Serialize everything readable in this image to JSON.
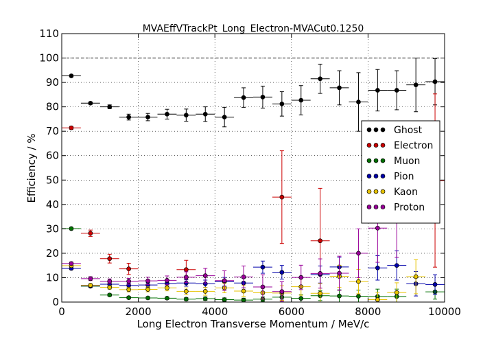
{
  "chart_data": {
    "type": "scatter",
    "title": "MVAEffVTrackPt_Long_Electron-MVACut0.1250",
    "xlabel": "Long Electron Transverse Momentum / MeV/c",
    "ylabel": "Efficiency / %",
    "xlim": [
      0,
      10000
    ],
    "ylim": [
      0,
      110
    ],
    "xticks": [
      0,
      2000,
      4000,
      6000,
      8000,
      10000
    ],
    "yticks": [
      0,
      10,
      20,
      30,
      40,
      50,
      60,
      70,
      80,
      90,
      100,
      110
    ],
    "grid": true,
    "reference_line": 100,
    "legend_position": "right",
    "bin_half_width": 250,
    "series": [
      {
        "name": "Ghost",
        "color": "#000000",
        "x": [
          250,
          750,
          1250,
          1750,
          2250,
          2750,
          3250,
          3750,
          4250,
          4750,
          5250,
          5750,
          6250,
          6750,
          7250,
          7750,
          8250,
          8750,
          9250,
          9750
        ],
        "y": [
          92.7,
          81.5,
          80.0,
          75.8,
          75.8,
          77.0,
          76.6,
          77.0,
          75.8,
          83.8,
          84.0,
          81.2,
          82.7,
          91.5,
          87.8,
          82.0,
          86.8,
          86.8,
          89.0,
          90.3
        ],
        "err": [
          0.4,
          0.5,
          0.8,
          1.2,
          1.5,
          2,
          2.5,
          3,
          4,
          4,
          4.5,
          5,
          6,
          6,
          7,
          12,
          8.5,
          8,
          11,
          9.5
        ]
      },
      {
        "name": "Electron",
        "color": "#cc0000",
        "x": [
          250,
          750,
          1250,
          1750,
          3250,
          5750,
          6750,
          9750
        ],
        "y": [
          71.4,
          28.2,
          17.8,
          13.6,
          13.3,
          43.0,
          25.1,
          49.8
        ],
        "err": [
          0.6,
          1.3,
          1.8,
          2.3,
          3.8,
          19,
          21.5,
          35.5
        ]
      },
      {
        "name": "Muon",
        "color": "#007000",
        "x": [
          250,
          750,
          1250,
          1750,
          2250,
          2750,
          3250,
          3750,
          4250,
          4750,
          5250,
          5750,
          6250,
          6750,
          7250,
          7750,
          8250,
          8750,
          9750
        ],
        "y": [
          30.1,
          6.5,
          2.9,
          1.8,
          1.7,
          1.6,
          1.2,
          1.4,
          1.0,
          0.8,
          1.2,
          2.0,
          1.5,
          2.6,
          2.5,
          2.4,
          2.3,
          2.3,
          4.2
        ],
        "err": [
          0.5,
          0.5,
          0.5,
          0.5,
          0.5,
          0.5,
          0.6,
          0.7,
          0.7,
          0.8,
          0.9,
          1.2,
          1.5,
          2,
          2.5,
          2.5,
          3,
          3,
          3
        ]
      },
      {
        "name": "Pion",
        "color": "#0000aa",
        "x": [
          250,
          750,
          1250,
          1750,
          2250,
          2750,
          3250,
          3750,
          4250,
          4750,
          5250,
          5750,
          6750,
          7250,
          8250,
          8750,
          9250,
          9750
        ],
        "y": [
          13.8,
          6.6,
          7.3,
          6.8,
          7.0,
          7.6,
          7.8,
          7.5,
          8.3,
          7.8,
          14.3,
          12.2,
          11.3,
          14.4,
          14.0,
          15.0,
          7.5,
          7.2
        ],
        "err": [
          0.5,
          0.6,
          0.8,
          0.9,
          1,
          1.1,
          1.3,
          1.5,
          1.8,
          2,
          2.5,
          2.8,
          3.5,
          4,
          5,
          6,
          5,
          4
        ]
      },
      {
        "name": "Kaon",
        "color": "#e6c200",
        "x": [
          250,
          750,
          1250,
          1750,
          2250,
          2750,
          3250,
          3750,
          4250,
          4750,
          5250,
          5750,
          6250,
          6750,
          7250,
          7750,
          8250,
          8750,
          9250
        ],
        "y": [
          14.9,
          6.9,
          6.0,
          5.1,
          5.2,
          5.8,
          4.4,
          4.4,
          5.8,
          4.5,
          3.8,
          3.7,
          6.3,
          3.6,
          10.5,
          8.4,
          1.0,
          3.9,
          10.4
        ],
        "err": [
          0.5,
          0.6,
          0.7,
          0.9,
          1,
          1.2,
          1.4,
          1.6,
          2,
          2.2,
          2.5,
          3,
          3.5,
          4,
          4.5,
          5,
          3,
          4,
          7
        ]
      },
      {
        "name": "Proton",
        "color": "#990099",
        "x": [
          250,
          750,
          1250,
          1750,
          2250,
          2750,
          3250,
          3750,
          4250,
          4750,
          5250,
          5750,
          6250,
          6750,
          7250,
          7750,
          8250,
          8750
        ],
        "y": [
          15.8,
          9.6,
          8.5,
          8.5,
          8.7,
          8.9,
          10.2,
          10.8,
          8.8,
          10.3,
          6.2,
          4.3,
          10.1,
          11.7,
          11.8,
          20.0,
          30.3,
          33.3
        ],
        "err": [
          0.6,
          0.8,
          1,
          1.2,
          1.5,
          1.8,
          2.2,
          3,
          4,
          4.5,
          5,
          4,
          5,
          6,
          7,
          10,
          14,
          15
        ]
      }
    ]
  }
}
